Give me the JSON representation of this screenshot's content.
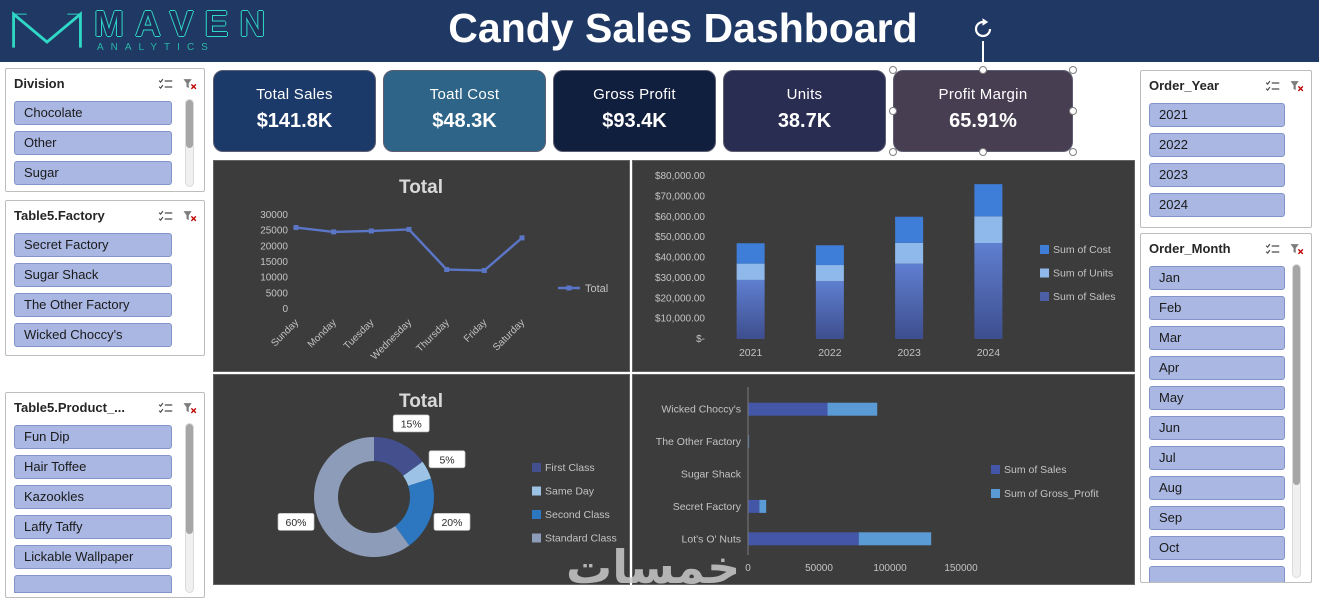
{
  "header": {
    "title": "Candy Sales Dashboard",
    "logo": "MAVEN",
    "logo_sub": "ANALYTICS"
  },
  "kpi": [
    {
      "label": "Total Sales",
      "value": "$141.8K",
      "bg": "#1b3a69"
    },
    {
      "label": "Toatl Cost",
      "value": "$48.3K",
      "bg": "#2e6487"
    },
    {
      "label": "Gross Profit",
      "value": "$93.4K",
      "bg": "#111f3e"
    },
    {
      "label": "Units",
      "value": "38.7K",
      "bg": "#2a2d52"
    },
    {
      "label": "Profit Margin",
      "value": "65.91%",
      "bg": "#483e52",
      "selected": true
    }
  ],
  "slicers": {
    "left": [
      {
        "title": "Division",
        "items": [
          "Chocolate",
          "Other",
          "Sugar"
        ]
      },
      {
        "title": "Table5.Factory",
        "items": [
          "Secret Factory",
          "Sugar Shack",
          "The Other Factory",
          "Wicked Choccy's"
        ]
      },
      {
        "title": "Table5.Product_...",
        "items": [
          "Fun Dip",
          "Hair Toffee",
          "Kazookles",
          "Laffy Taffy",
          "Lickable Wallpaper"
        ]
      }
    ],
    "right": [
      {
        "title": "Order_Year",
        "items": [
          "2021",
          "2022",
          "2023",
          "2024"
        ]
      },
      {
        "title": "Order_Month",
        "items": [
          "Jan",
          "Feb",
          "Mar",
          "Apr",
          "May",
          "Jun",
          "Jul",
          "Aug",
          "Sep",
          "Oct"
        ]
      }
    ]
  },
  "chart_data": [
    {
      "type": "line",
      "title": "Total",
      "categories": [
        "Sunday",
        "Monday",
        "Tuesday",
        "Wednesday",
        "Thursday",
        "Friday",
        "Saturday"
      ],
      "series": [
        {
          "name": "Total",
          "color": "#5b76c7",
          "values": [
            26000,
            24600,
            24900,
            25400,
            12600,
            12300,
            22700
          ]
        }
      ],
      "ylim": [
        0,
        30000
      ],
      "yticks": [
        0,
        5000,
        10000,
        15000,
        20000,
        25000,
        30000
      ],
      "legend_position": "right",
      "grid": false
    },
    {
      "type": "stacked-column",
      "title": "",
      "categories": [
        "2021",
        "2022",
        "2023",
        "2024"
      ],
      "series": [
        {
          "name": "Sum of Cost",
          "color": "#3f7ed8",
          "values": [
            10000,
            9700,
            12800,
            15800
          ]
        },
        {
          "name": "Sum of Units",
          "color": "#8fb9ea",
          "values": [
            8000,
            7900,
            10200,
            13100
          ]
        },
        {
          "name": "Sum of Sales",
          "color": "#4d5fa6",
          "gradient": [
            "#3e4e8e",
            "#5f7fd0"
          ],
          "values": [
            29000,
            28400,
            37000,
            47100
          ]
        }
      ],
      "stack_order_bottom_to_top": [
        "Sum of Sales",
        "Sum of Units",
        "Sum of Cost"
      ],
      "ylim": [
        0,
        80000
      ],
      "ytick_labels": [
        "$-",
        "$10,000.00",
        "$20,000.00",
        "$30,000.00",
        "$40,000.00",
        "$50,000.00",
        "$60,000.00",
        "$70,000.00",
        "$80,000.00"
      ],
      "legend_position": "right"
    },
    {
      "type": "doughnut",
      "title": "Total",
      "slices": [
        {
          "label": "First Class",
          "pct": 15,
          "data_label": "15%",
          "color": "#44508e"
        },
        {
          "label": "Same Day",
          "pct": 5,
          "data_label": "5%",
          "color": "#9cc3e5"
        },
        {
          "label": "Second Class",
          "pct": 20,
          "data_label": "20%",
          "color": "#2d76c0"
        },
        {
          "label": "Standard Class",
          "pct": 60,
          "data_label": "60%",
          "color": "#8d9cb8"
        }
      ],
      "legend_position": "right"
    },
    {
      "type": "stacked-bar-horizontal",
      "title": "",
      "categories": [
        "Wicked Choccy's",
        "The Other Factory",
        "Sugar Shack",
        "Secret Factory",
        "Lot's O' Nuts"
      ],
      "series": [
        {
          "name": "Sum of Sales",
          "color": "#4456a8",
          "values": [
            56000,
            500,
            300,
            8000,
            78000
          ]
        },
        {
          "name": "Sum of Gross_Profit",
          "color": "#5b9bd5",
          "values": [
            35000,
            300,
            200,
            4800,
            51000
          ]
        }
      ],
      "xlim": [
        0,
        150000
      ],
      "xticks": [
        0,
        50000,
        100000,
        150000
      ],
      "legend_position": "right"
    }
  ],
  "watermark": "خمسات"
}
